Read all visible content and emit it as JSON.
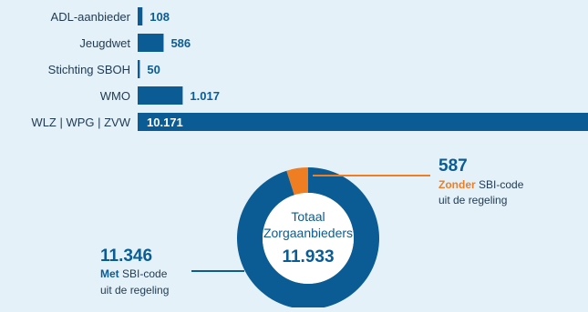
{
  "chart_data": [
    {
      "type": "bar",
      "orientation": "horizontal",
      "categories": [
        "ADL-aanbieder",
        "Jeugdwet",
        "Stichting SBOH",
        "WMO",
        "WLZ | WPG | ZVW"
      ],
      "values": [
        108,
        586,
        50,
        1017,
        10171
      ],
      "value_labels": [
        "108",
        "586",
        "50",
        "1.017",
        "10.171"
      ],
      "title": "",
      "xlabel": "",
      "ylabel": "",
      "grid": false,
      "bar_color": "#0b5c94",
      "label_color": "#0b5c94",
      "category_label_color": "#1f3a52"
    },
    {
      "type": "pie",
      "style": "donut",
      "center_line1": "Totaal",
      "center_line2": "Zorgaanbieders",
      "center_value": "11.933",
      "total": 11933,
      "slices": [
        {
          "value": 11346,
          "label": "11.346",
          "desc_bold": "Met",
          "desc_rest": " SBI-code",
          "desc_line2": "uit de regeling",
          "color": "#0b5c94"
        },
        {
          "value": 587,
          "label": "587",
          "desc_bold": "Zonder",
          "desc_rest": " SBI-code",
          "desc_line2": "uit de regeling",
          "color": "#ef7d22"
        }
      ]
    }
  ],
  "colors": {
    "background": "#e4f1f8",
    "primary": "#0b5c94",
    "accent": "#ef7d22",
    "text_dark": "#1f3a52",
    "center_text": "#0b5c94"
  }
}
